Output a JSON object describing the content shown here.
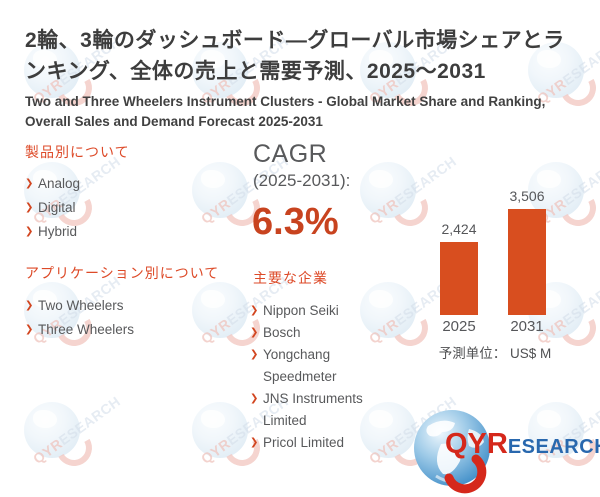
{
  "title_ja": "2輪、3輪のダッシュボード—グローバル市場シェアとランキング、全体の売上と需要予測、2025～2031",
  "title_en": "Two and Three Wheelers Instrument Clusters - Global Market Share and Ranking, Overall Sales and Demand Forecast 2025-2031",
  "product_section": {
    "heading": "製品別について",
    "items": [
      "Analog",
      "Digital",
      "Hybrid"
    ]
  },
  "application_section": {
    "heading": "アプリケーション別について",
    "items": [
      "Two Wheelers",
      "Three Wheelers"
    ]
  },
  "cagr": {
    "label": "CAGR",
    "period": "(2025-2031):",
    "value": "6.3%"
  },
  "companies_section": {
    "heading": "主要な企業",
    "items": [
      "Nippon Seiki",
      "Bosch",
      "Yongchang Speedmeter",
      "JNS Instruments Limited",
      "Pricol Limited"
    ]
  },
  "chart_data": {
    "type": "bar",
    "title": "",
    "categories": [
      "2025",
      "2031"
    ],
    "values": [
      2424,
      3506
    ],
    "value_labels": [
      "2,424",
      "3,506"
    ],
    "unit_note": "予測单位： US$ M",
    "xlabel": "",
    "ylabel": "",
    "ylim": [
      0,
      3700
    ],
    "grid": false,
    "legend": false,
    "bar_color": "#D84E1F"
  },
  "icons": {
    "bullet": "❯"
  },
  "watermark": {
    "qyr": "QYR",
    "esearch": "ESEARCH"
  },
  "logo": {
    "qyr": "QYR",
    "esearch": "ESEARCH"
  },
  "colors": {
    "heading_orange": "#DD4A28",
    "bar_orange": "#D84E1F",
    "cagr_red": "#C8431F",
    "logo_red": "#D5281B",
    "logo_blue": "#2968AE",
    "text_dark": "#3D3D3D",
    "text_gray": "#58595B"
  }
}
